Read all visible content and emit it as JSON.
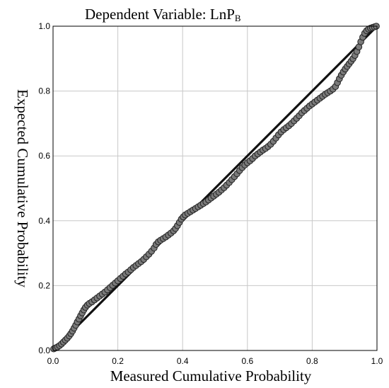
{
  "chart_data": {
    "type": "scatter",
    "title": "Dependent Variable:  LnP",
    "title_subscript": "B",
    "xlabel": "Measured  Cumulative Probability",
    "ylabel": "Expected  Cumulative  Probability",
    "xlim": [
      0,
      1
    ],
    "ylim": [
      0,
      1
    ],
    "x_ticks": [
      "0.0",
      "0.2",
      "0.4",
      "0.6",
      "0.8",
      "1.0"
    ],
    "y_ticks": [
      "0.0",
      "0.2",
      "0.4",
      "0.6",
      "0.8",
      "1.0"
    ],
    "grid": true,
    "reference_line": [
      [
        0,
        0
      ],
      [
        1,
        1
      ]
    ],
    "series": [
      {
        "marker": "circle",
        "points": [
          [
            0.002,
            0.005
          ],
          [
            0.008,
            0.008
          ],
          [
            0.014,
            0.011
          ],
          [
            0.02,
            0.015
          ],
          [
            0.026,
            0.02
          ],
          [
            0.032,
            0.026
          ],
          [
            0.038,
            0.032
          ],
          [
            0.044,
            0.038
          ],
          [
            0.05,
            0.045
          ],
          [
            0.055,
            0.052
          ],
          [
            0.06,
            0.06
          ],
          [
            0.065,
            0.069
          ],
          [
            0.07,
            0.078
          ],
          [
            0.075,
            0.088
          ],
          [
            0.08,
            0.097
          ],
          [
            0.085,
            0.107
          ],
          [
            0.09,
            0.116
          ],
          [
            0.095,
            0.125
          ],
          [
            0.1,
            0.133
          ],
          [
            0.106,
            0.14
          ],
          [
            0.112,
            0.145
          ],
          [
            0.12,
            0.15
          ],
          [
            0.128,
            0.156
          ],
          [
            0.136,
            0.162
          ],
          [
            0.144,
            0.168
          ],
          [
            0.152,
            0.174
          ],
          [
            0.16,
            0.18
          ],
          [
            0.168,
            0.187
          ],
          [
            0.176,
            0.194
          ],
          [
            0.184,
            0.201
          ],
          [
            0.192,
            0.208
          ],
          [
            0.2,
            0.215
          ],
          [
            0.208,
            0.222
          ],
          [
            0.216,
            0.229
          ],
          [
            0.224,
            0.236
          ],
          [
            0.232,
            0.242
          ],
          [
            0.24,
            0.249
          ],
          [
            0.248,
            0.256
          ],
          [
            0.256,
            0.262
          ],
          [
            0.264,
            0.268
          ],
          [
            0.272,
            0.274
          ],
          [
            0.28,
            0.281
          ],
          [
            0.288,
            0.289
          ],
          [
            0.296,
            0.297
          ],
          [
            0.304,
            0.306
          ],
          [
            0.312,
            0.316
          ],
          [
            0.318,
            0.327
          ],
          [
            0.325,
            0.335
          ],
          [
            0.332,
            0.34
          ],
          [
            0.34,
            0.345
          ],
          [
            0.348,
            0.35
          ],
          [
            0.356,
            0.356
          ],
          [
            0.364,
            0.362
          ],
          [
            0.372,
            0.369
          ],
          [
            0.378,
            0.376
          ],
          [
            0.384,
            0.385
          ],
          [
            0.39,
            0.395
          ],
          [
            0.396,
            0.405
          ],
          [
            0.402,
            0.412
          ],
          [
            0.408,
            0.418
          ],
          [
            0.416,
            0.423
          ],
          [
            0.424,
            0.428
          ],
          [
            0.432,
            0.433
          ],
          [
            0.44,
            0.438
          ],
          [
            0.448,
            0.443
          ],
          [
            0.456,
            0.448
          ],
          [
            0.464,
            0.453
          ],
          [
            0.472,
            0.458
          ],
          [
            0.48,
            0.464
          ],
          [
            0.488,
            0.47
          ],
          [
            0.496,
            0.476
          ],
          [
            0.504,
            0.482
          ],
          [
            0.512,
            0.488
          ],
          [
            0.52,
            0.495
          ],
          [
            0.528,
            0.502
          ],
          [
            0.536,
            0.51
          ],
          [
            0.544,
            0.518
          ],
          [
            0.552,
            0.527
          ],
          [
            0.56,
            0.536
          ],
          [
            0.568,
            0.545
          ],
          [
            0.576,
            0.555
          ],
          [
            0.584,
            0.564
          ],
          [
            0.592,
            0.572
          ],
          [
            0.6,
            0.579
          ],
          [
            0.608,
            0.585
          ],
          [
            0.616,
            0.592
          ],
          [
            0.624,
            0.6
          ],
          [
            0.632,
            0.606
          ],
          [
            0.64,
            0.612
          ],
          [
            0.648,
            0.618
          ],
          [
            0.656,
            0.623
          ],
          [
            0.664,
            0.629
          ],
          [
            0.672,
            0.636
          ],
          [
            0.68,
            0.645
          ],
          [
            0.688,
            0.655
          ],
          [
            0.696,
            0.665
          ],
          [
            0.704,
            0.674
          ],
          [
            0.712,
            0.681
          ],
          [
            0.72,
            0.687
          ],
          [
            0.728,
            0.693
          ],
          [
            0.736,
            0.7
          ],
          [
            0.744,
            0.708
          ],
          [
            0.752,
            0.716
          ],
          [
            0.76,
            0.724
          ],
          [
            0.768,
            0.733
          ],
          [
            0.776,
            0.74
          ],
          [
            0.784,
            0.747
          ],
          [
            0.792,
            0.754
          ],
          [
            0.8,
            0.76
          ],
          [
            0.808,
            0.766
          ],
          [
            0.816,
            0.772
          ],
          [
            0.824,
            0.778
          ],
          [
            0.832,
            0.784
          ],
          [
            0.84,
            0.79
          ],
          [
            0.848,
            0.795
          ],
          [
            0.856,
            0.8
          ],
          [
            0.864,
            0.806
          ],
          [
            0.872,
            0.814
          ],
          [
            0.878,
            0.826
          ],
          [
            0.884,
            0.838
          ],
          [
            0.89,
            0.849
          ],
          [
            0.896,
            0.859
          ],
          [
            0.902,
            0.868
          ],
          [
            0.908,
            0.876
          ],
          [
            0.914,
            0.884
          ],
          [
            0.92,
            0.892
          ],
          [
            0.926,
            0.9
          ],
          [
            0.932,
            0.91
          ],
          [
            0.938,
            0.922
          ],
          [
            0.944,
            0.936
          ],
          [
            0.95,
            0.952
          ],
          [
            0.956,
            0.966
          ],
          [
            0.962,
            0.978
          ],
          [
            0.968,
            0.986
          ],
          [
            0.974,
            0.991
          ],
          [
            0.98,
            0.994
          ],
          [
            0.986,
            0.996
          ],
          [
            0.992,
            0.998
          ],
          [
            0.998,
            1.0
          ]
        ]
      }
    ]
  }
}
